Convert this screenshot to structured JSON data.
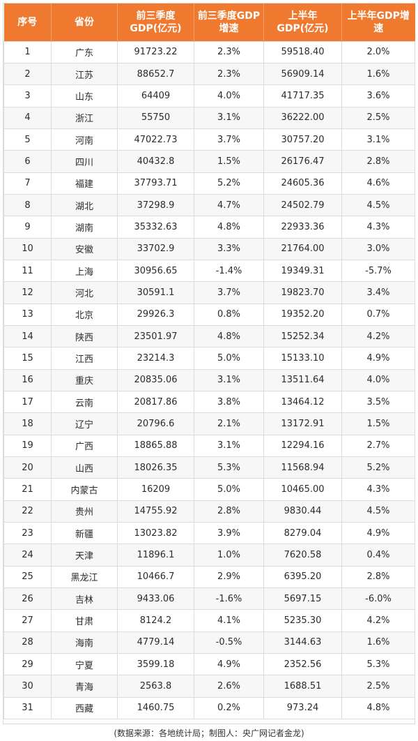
{
  "table": {
    "headers": [
      "序号",
      "省份",
      "前三季度\nGDP(亿元)",
      "前三季度GDP\n增速",
      "上半年\nGDP(亿元)",
      "上半年GDP增\n速"
    ],
    "rows": [
      [
        "1",
        "广东",
        "91723.22",
        "2.3%",
        "59518.40",
        "2.0%"
      ],
      [
        "2",
        "江苏",
        "88652.7",
        "2.3%",
        "56909.14",
        "1.6%"
      ],
      [
        "3",
        "山东",
        "64409",
        "4.0%",
        "41717.35",
        "3.6%"
      ],
      [
        "4",
        "浙江",
        "55750",
        "3.1%",
        "36222.00",
        "2.5%"
      ],
      [
        "5",
        "河南",
        "47022.73",
        "3.7%",
        "30757.20",
        "3.1%"
      ],
      [
        "6",
        "四川",
        "40432.8",
        "1.5%",
        "26176.47",
        "2.8%"
      ],
      [
        "7",
        "福建",
        "37793.71",
        "5.2%",
        "24605.36",
        "4.6%"
      ],
      [
        "8",
        "湖北",
        "37298.9",
        "4.7%",
        "24502.79",
        "4.5%"
      ],
      [
        "9",
        "湖南",
        "35332.63",
        "4.8%",
        "22933.36",
        "4.3%"
      ],
      [
        "10",
        "安徽",
        "33702.9",
        "3.3%",
        "21764.00",
        "3.0%"
      ],
      [
        "11",
        "上海",
        "30956.65",
        "-1.4%",
        "19349.31",
        "-5.7%"
      ],
      [
        "12",
        "河北",
        "30591.1",
        "3.7%",
        "19823.70",
        "3.4%"
      ],
      [
        "13",
        "北京",
        "29926.3",
        "0.8%",
        "19352.20",
        "0.7%"
      ],
      [
        "14",
        "陕西",
        "23501.97",
        "4.8%",
        "15252.34",
        "4.2%"
      ],
      [
        "15",
        "江西",
        "23214.3",
        "5.0%",
        "15133.10",
        "4.9%"
      ],
      [
        "16",
        "重庆",
        "20835.06",
        "3.1%",
        "13511.64",
        "4.0%"
      ],
      [
        "17",
        "云南",
        "20817.86",
        "3.8%",
        "13464.12",
        "3.5%"
      ],
      [
        "18",
        "辽宁",
        "20796.6",
        "2.1%",
        "13172.91",
        "1.5%"
      ],
      [
        "19",
        "广西",
        "18865.88",
        "3.1%",
        "12294.16",
        "2.7%"
      ],
      [
        "20",
        "山西",
        "18026.35",
        "5.3%",
        "11568.94",
        "5.2%"
      ],
      [
        "21",
        "内蒙古",
        "16209",
        "5.0%",
        "10465.00",
        "4.3%"
      ],
      [
        "22",
        "贵州",
        "14755.92",
        "2.8%",
        "9830.44",
        "4.5%"
      ],
      [
        "23",
        "新疆",
        "13023.82",
        "3.9%",
        "8279.04",
        "4.9%"
      ],
      [
        "24",
        "天津",
        "11896.1",
        "1.0%",
        "7620.58",
        "0.4%"
      ],
      [
        "25",
        "黑龙江",
        "10466.7",
        "2.9%",
        "6395.20",
        "2.8%"
      ],
      [
        "26",
        "吉林",
        "9433.06",
        "-1.6%",
        "5697.15",
        "-6.0%"
      ],
      [
        "27",
        "甘肃",
        "8124.2",
        "4.1%",
        "5235.30",
        "4.2%"
      ],
      [
        "28",
        "海南",
        "4779.14",
        "-0.5%",
        "3144.63",
        "1.6%"
      ],
      [
        "29",
        "宁夏",
        "3599.18",
        "4.9%",
        "2352.56",
        "5.3%"
      ],
      [
        "30",
        "青海",
        "2563.8",
        "2.6%",
        "1688.51",
        "2.5%"
      ],
      [
        "31",
        "西藏",
        "1460.75",
        "0.2%",
        "973.24",
        "4.8%"
      ]
    ]
  },
  "footer": {
    "note": "(数据来源：各地统计局；制图人：央广网记者金龙)"
  },
  "colors": {
    "header_bg": "#ef7a2f",
    "header_text": "#ffffff",
    "alt_row_bg": "#f7f7f7"
  }
}
